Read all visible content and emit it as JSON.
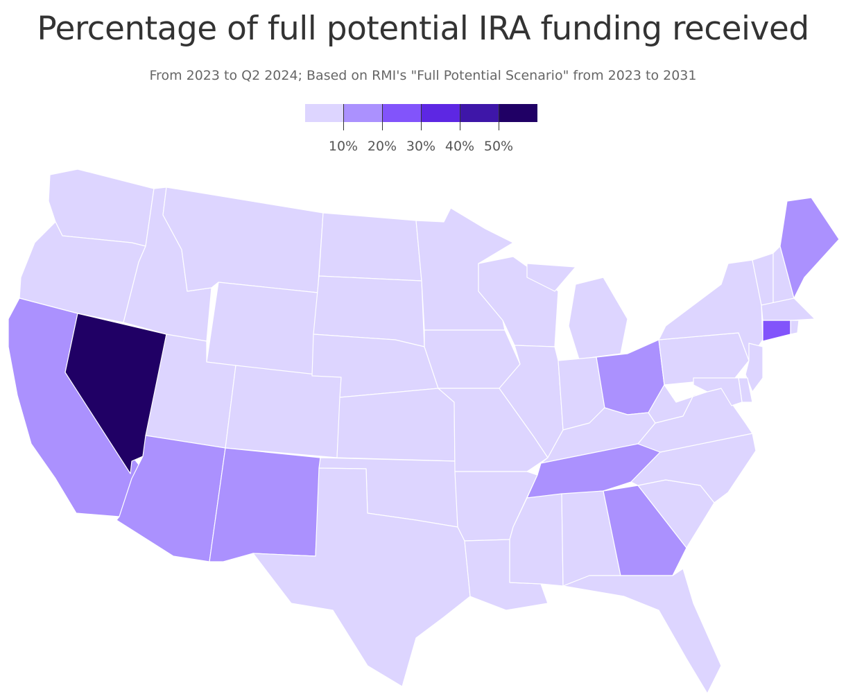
{
  "title": "Percentage of full potential IRA funding received",
  "subtitle": "From 2023 to Q2 2024; Based on RMI's \"Full Potential Scenario\" from 2023 to 2031",
  "legend": {
    "colors": [
      "#ddd5ff",
      "#ab91fe",
      "#8254fb",
      "#5d27e3",
      "#3e16a8",
      "#200065"
    ],
    "thresholds": [
      10,
      20,
      30,
      40,
      50
    ],
    "labels": [
      "10%",
      "20%",
      "30%",
      "40%",
      "50%"
    ]
  },
  "map_data": {
    "type": "choropleth",
    "region": "United States (contiguous)",
    "bins": [
      {
        "range": "<10%",
        "color": "#ddd5ff"
      },
      {
        "range": "10–20%",
        "color": "#ab91fe"
      },
      {
        "range": "20–30%",
        "color": "#8254fb"
      },
      {
        "range": "30–40%",
        "color": "#5d27e3"
      },
      {
        "range": "40–50%",
        "color": "#3e16a8"
      },
      {
        "range": ">50%",
        "color": "#200065"
      }
    ],
    "states": {
      "WA": 0,
      "OR": 0,
      "CA": 1,
      "NV": 5,
      "ID": 0,
      "MT": 0,
      "WY": 0,
      "UT": 0,
      "AZ": 1,
      "CO": 0,
      "NM": 1,
      "ND": 0,
      "SD": 0,
      "NE": 0,
      "KS": 0,
      "OK": 0,
      "TX": 0,
      "MN": 0,
      "IA": 0,
      "MO": 0,
      "AR": 0,
      "LA": 0,
      "WI": 0,
      "IL": 0,
      "MI": 0,
      "IN": 0,
      "OH": 1,
      "KY": 0,
      "TN": 1,
      "MS": 0,
      "AL": 0,
      "GA": 1,
      "FL": 0,
      "SC": 0,
      "NC": 0,
      "VA": 0,
      "WV": 0,
      "PA": 0,
      "NY": 0,
      "VT": 0,
      "NH": 0,
      "ME": 1,
      "MA": 0,
      "RI": 0,
      "CT": 2,
      "NJ": 0,
      "DE": 0,
      "MD": 0
    }
  }
}
